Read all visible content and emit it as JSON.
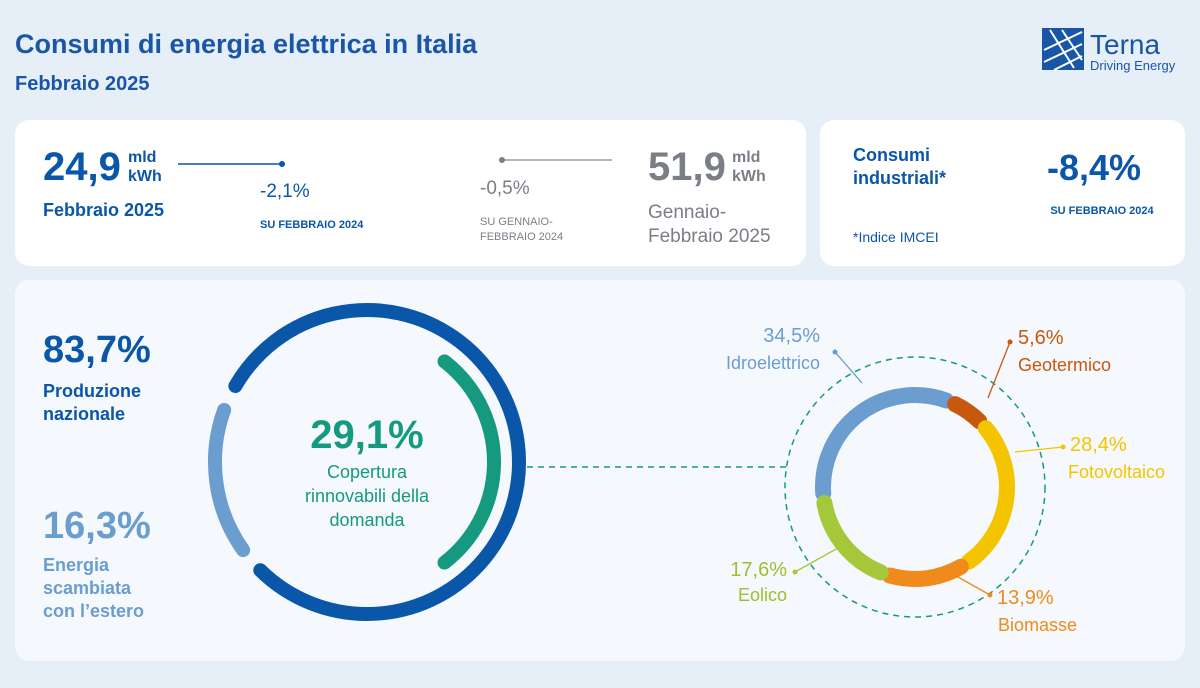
{
  "header": {
    "title": "Consumi di energia elettrica in Italia",
    "subtitle": "Febbraio 2025",
    "logo": {
      "name": "Terna",
      "tagline": "Driving Energy"
    }
  },
  "monthly": {
    "value": "24,9",
    "unit_top": "mld",
    "unit_bottom": "kWh",
    "period": "Febbraio 2025",
    "change": "-2,1%",
    "change_ref": "SU FEBBRAIO 2024"
  },
  "cumulative": {
    "value": "51,9",
    "unit_top": "mld",
    "unit_bottom": "kWh",
    "period_lines": [
      "Gennaio-",
      "Febbraio 2025"
    ],
    "change": "-0,5%",
    "change_ref_lines": [
      "SU GENNAIO-",
      "FEBBRAIO 2024"
    ]
  },
  "industrial": {
    "title_lines": [
      "Consumi",
      "industriali*"
    ],
    "change": "-8,4%",
    "change_ref": "SU FEBBRAIO 2024",
    "note": "*Indice IMCEI"
  },
  "supply": {
    "segments": [
      {
        "value": 83.7,
        "label": "83,7%",
        "name_lines": [
          "Produzione",
          "nazionale"
        ],
        "color": "#0a56a8"
      },
      {
        "value": 16.3,
        "label": "16,3%",
        "name_lines": [
          "Energia",
          "scambiata",
          "con l’estero"
        ],
        "color": "#6b9dcf"
      }
    ],
    "renewables_share": {
      "value": 29.1,
      "label": "29,1%",
      "name_lines": [
        "Copertura",
        "rinnovabili della",
        "domanda"
      ],
      "color": "#159a7f"
    }
  },
  "renewables": {
    "segments": [
      {
        "name": "Idroelettrico",
        "value": 34.5,
        "label": "34,5%",
        "color": "#6b9dcf"
      },
      {
        "name": "Geotermico",
        "value": 5.6,
        "label": "5,6%",
        "color": "#c8580d"
      },
      {
        "name": "Fotovoltaico",
        "value": 28.4,
        "label": "28,4%",
        "color": "#f5c400"
      },
      {
        "name": "Biomasse",
        "value": 13.9,
        "label": "13,9%",
        "color": "#f08a1c"
      },
      {
        "name": "Eolico",
        "value": 17.6,
        "label": "17,6%",
        "color": "#a5c83a"
      }
    ]
  }
}
